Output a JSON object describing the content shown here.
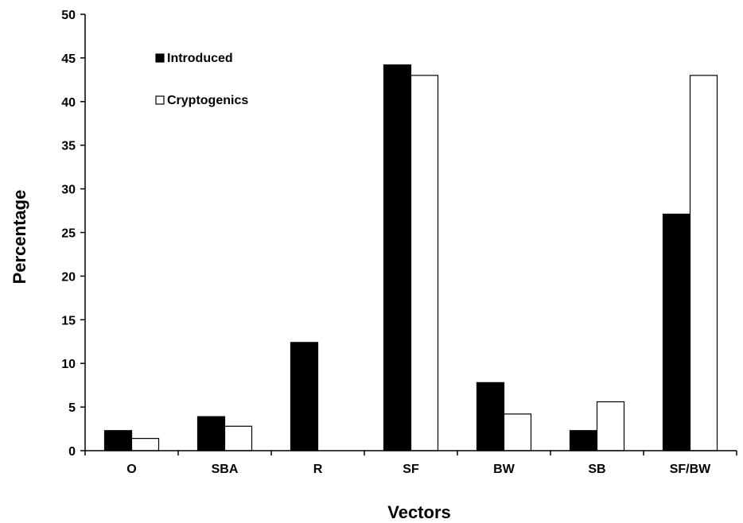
{
  "chart_data": {
    "type": "bar",
    "categories": [
      "O",
      "SBA",
      "R",
      "SF",
      "BW",
      "SB",
      "SF/BW"
    ],
    "series": [
      {
        "name": "Introduced",
        "color": "#000000",
        "values": [
          2.3,
          3.9,
          12.4,
          44.2,
          7.8,
          2.3,
          27.1
        ]
      },
      {
        "name": "Cryptogenics",
        "color": "#ffffff",
        "values": [
          1.4,
          2.8,
          0,
          43.0,
          4.2,
          5.6,
          43.0
        ]
      }
    ],
    "xlabel": "Vectors",
    "ylabel": "Percentage",
    "ylim": [
      0,
      50
    ],
    "yticks": [
      0,
      5,
      10,
      15,
      20,
      25,
      30,
      35,
      40,
      45,
      50
    ],
    "grid": false,
    "legend_position": "top-left"
  }
}
